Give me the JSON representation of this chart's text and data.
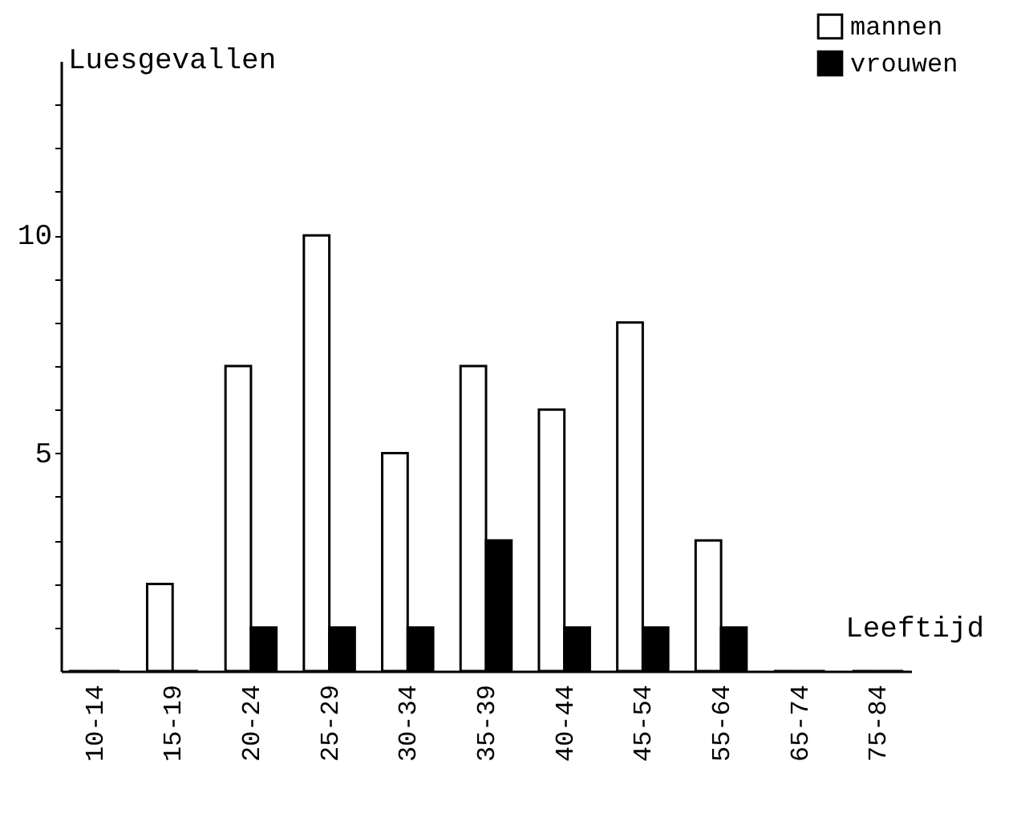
{
  "chart_data": {
    "type": "bar",
    "xlabel": "Leeftijd",
    "ylabel": "Luesgevallen",
    "categories": [
      "10-14",
      "15-19",
      "20-24",
      "25-29",
      "30-34",
      "35-39",
      "40-44",
      "45-54",
      "55-64",
      "65-74",
      "75-84"
    ],
    "series": [
      {
        "name": "mannen",
        "color": "#ffffff",
        "values": [
          0,
          2,
          7,
          10,
          5,
          7,
          6,
          8,
          3,
          0,
          0
        ]
      },
      {
        "name": "vrouwen",
        "color": "#000000",
        "values": [
          0,
          0,
          1,
          1,
          1,
          3,
          1,
          1,
          1,
          0,
          0
        ]
      }
    ],
    "ylim": [
      0,
      14
    ],
    "yticks": [
      {
        "value": 1,
        "label": null
      },
      {
        "value": 2,
        "label": null
      },
      {
        "value": 3,
        "label": null
      },
      {
        "value": 4,
        "label": null
      },
      5,
      {
        "value": 6,
        "label": null
      },
      {
        "value": 7,
        "label": null
      },
      {
        "value": 8,
        "label": null
      },
      {
        "value": 9,
        "label": null
      },
      10,
      {
        "value": 11,
        "label": null
      },
      {
        "value": 12,
        "label": null
      },
      {
        "value": 13,
        "label": null
      }
    ],
    "legend": "top right",
    "grid": false
  }
}
